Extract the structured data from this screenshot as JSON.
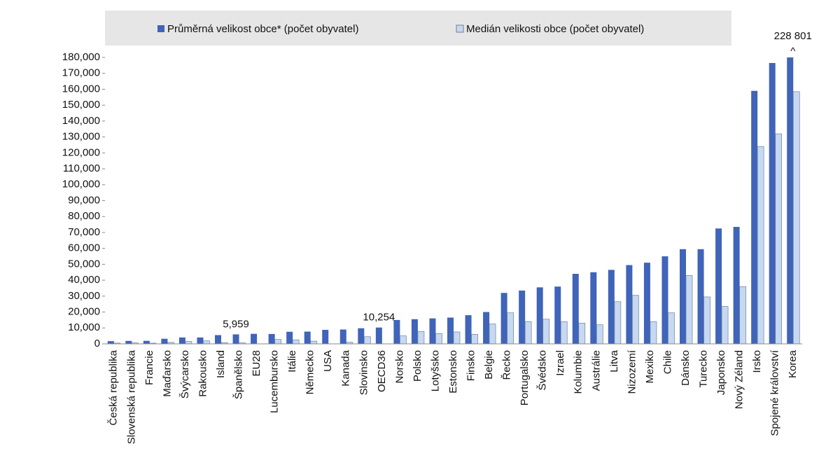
{
  "chart_data": {
    "type": "bar",
    "categories": [
      "Česká republika",
      "Slovenská republika",
      "Francie",
      "Maďarsko",
      "Švýcarsko",
      "Rakousko",
      "Island",
      "Španělsko",
      "EU28",
      "Lucembursko",
      "Itálie",
      "Německo",
      "USA",
      "Kanada",
      "Slovinsko",
      "OECD36",
      "Norsko",
      "Polsko",
      "Lotyšsko",
      "Estonsko",
      "Finsko",
      "Belgie",
      "Řecko",
      "Portugalsko",
      "Švédsko",
      "Izrael",
      "Kolumbie",
      "Austrálie",
      "Litva",
      "Nizozemí",
      "Mexiko",
      "Chile",
      "Dánsko",
      "Turecko",
      "Japonsko",
      "Nový Zéland",
      "Irsko",
      "Spojené království",
      "Korea"
    ],
    "series": [
      {
        "name": "Průměrná velikost obce* (počet obyvatel)",
        "color": "#3f64b9",
        "values": [
          1700,
          1850,
          1900,
          3200,
          4000,
          4000,
          5500,
          5959,
          6300,
          6200,
          7600,
          7700,
          8800,
          9000,
          9800,
          10254,
          15000,
          15500,
          16000,
          16500,
          18000,
          20000,
          32000,
          33500,
          35500,
          36000,
          44000,
          45000,
          46500,
          49500,
          51000,
          55000,
          59500,
          59500,
          72500,
          73500,
          159000,
          176500,
          228801
        ],
        "value_labels": [
          null,
          null,
          null,
          null,
          null,
          null,
          null,
          "5,959",
          null,
          null,
          null,
          null,
          null,
          null,
          null,
          "10,254",
          null,
          null,
          null,
          null,
          null,
          null,
          null,
          null,
          null,
          null,
          null,
          null,
          null,
          null,
          null,
          null,
          null,
          null,
          null,
          null,
          null,
          null,
          "228 801"
        ]
      },
      {
        "name": "Medián velikosti obce (počet obyvatel)",
        "color": "#c6d9f1",
        "values": [
          500,
          600,
          450,
          900,
          1500,
          1900,
          800,
          600,
          null,
          2800,
          2500,
          1700,
          null,
          1000,
          4500,
          null,
          5000,
          7800,
          6500,
          7500,
          6000,
          12500,
          19500,
          14000,
          15500,
          14000,
          13000,
          12000,
          26500,
          30500,
          14000,
          19500,
          43000,
          29500,
          23500,
          36000,
          124000,
          132000,
          158500
        ]
      }
    ],
    "break_marker": "^",
    "ylim": [
      0,
      180000
    ],
    "yticks": [
      0,
      {
        "value": 10000,
        "label": "10,000"
      },
      {
        "value": 20000,
        "label": "20,000"
      },
      {
        "value": 30000,
        "label": "30,000"
      },
      {
        "value": 40000,
        "label": "40,000"
      },
      {
        "value": 50000,
        "label": "50,000"
      },
      {
        "value": 60000,
        "label": "60,000"
      },
      {
        "value": 70000,
        "label": "70,000"
      },
      {
        "value": 80000,
        "label": "80,000"
      },
      {
        "value": 90000,
        "label": "90,000"
      },
      {
        "value": 100000,
        "label": "100,000"
      },
      {
        "value": 110000,
        "label": "110,000"
      },
      {
        "value": 120000,
        "label": "120,000"
      },
      {
        "value": 130000,
        "label": "130,000"
      },
      {
        "value": 140000,
        "label": "140,000"
      },
      {
        "value": 150000,
        "label": "150,000"
      },
      {
        "value": 160000,
        "label": "160,000"
      },
      {
        "value": 170000,
        "label": "170,000"
      },
      {
        "value": 180000,
        "label": "180,000"
      }
    ],
    "grid": false,
    "legend": "top"
  }
}
